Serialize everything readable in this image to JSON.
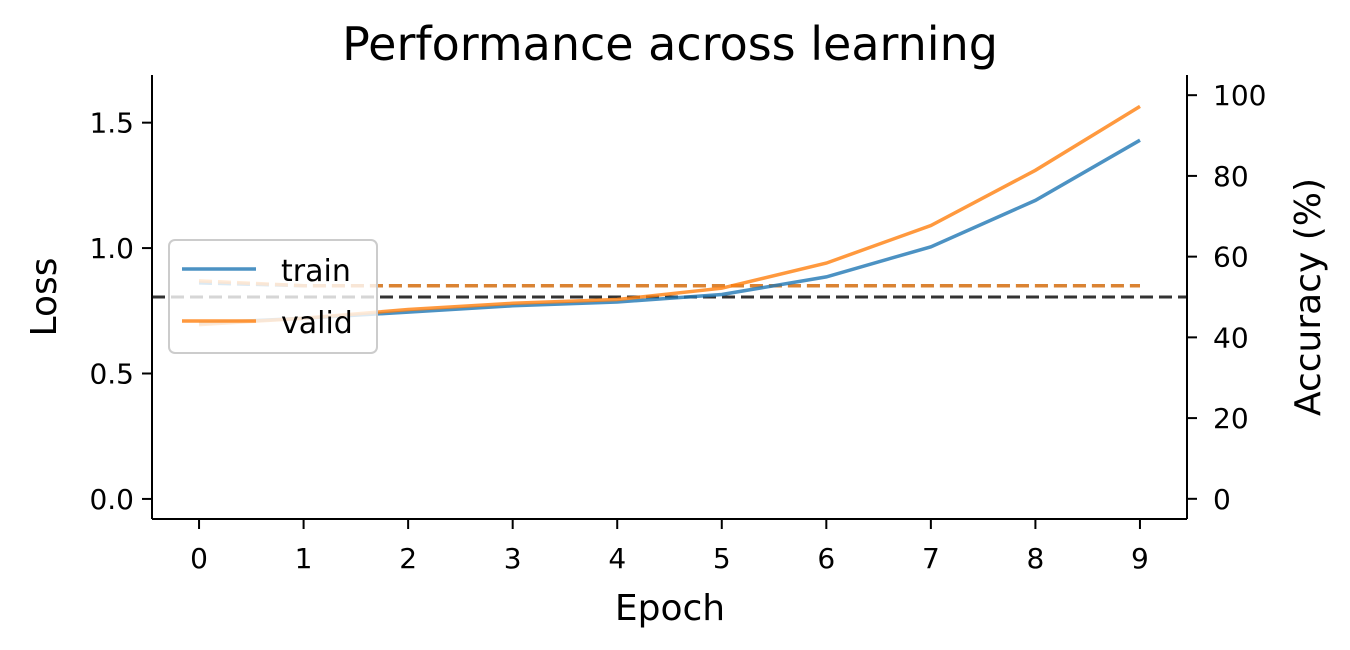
{
  "chart_data": {
    "type": "line",
    "title": "Performance across learning",
    "xlabel": "Epoch",
    "ylabel_left": "Loss",
    "ylabel_right": "Accuracy (%)",
    "x": [
      0,
      1,
      2,
      3,
      4,
      5,
      6,
      7,
      8,
      9
    ],
    "xticks": [
      "0",
      "1",
      "2",
      "3",
      "4",
      "5",
      "6",
      "7",
      "8",
      "9"
    ],
    "xlim": [
      -0.45,
      9.45
    ],
    "ylim_left": [
      -0.08,
      1.69
    ],
    "yticks_left": [
      "0.0",
      "0.5",
      "1.0",
      "1.5"
    ],
    "yticks_left_values": [
      0.0,
      0.5,
      1.0,
      1.5
    ],
    "ylim_right": [
      -5,
      105
    ],
    "yticks_right": [
      "0",
      "20",
      "40",
      "60",
      "80",
      "100"
    ],
    "yticks_right_values": [
      0,
      20,
      40,
      60,
      80,
      100
    ],
    "grid": false,
    "legend_placement": "center-left",
    "colors": {
      "train": "#1f77b4",
      "valid": "#ff7f0e",
      "reference": "#333333"
    },
    "series": [
      {
        "name": "train",
        "axis": "left",
        "style": "solid",
        "values": [
          0.7,
          0.72,
          0.745,
          0.77,
          0.785,
          0.815,
          0.885,
          1.005,
          1.19,
          1.43
        ]
      },
      {
        "name": "valid",
        "axis": "left",
        "style": "solid",
        "values": [
          0.695,
          0.72,
          0.755,
          0.78,
          0.795,
          0.84,
          0.94,
          1.09,
          1.31,
          1.565
        ]
      },
      {
        "axis": "right",
        "style": "dashed",
        "color_key": "train",
        "values": [
          53.5,
          52.8,
          52.8,
          52.8,
          52.8,
          52.8,
          52.8,
          52.8,
          52.8,
          52.8
        ]
      },
      {
        "axis": "right",
        "style": "dashed",
        "color_key": "valid",
        "values": [
          54.0,
          52.8,
          52.8,
          52.8,
          52.8,
          52.8,
          52.8,
          52.8,
          52.8,
          52.8
        ]
      }
    ],
    "reference_line": {
      "axis": "right",
      "value": 50,
      "style": "dashed"
    }
  }
}
